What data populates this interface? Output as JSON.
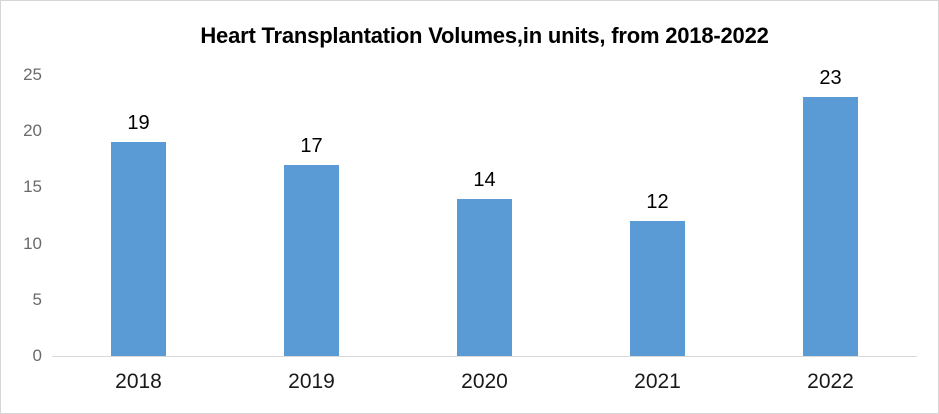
{
  "chart_data": {
    "type": "bar",
    "title": "Heart Transplantation Volumes,in units, from 2018-2022",
    "categories": [
      "2018",
      "2019",
      "2020",
      "2021",
      "2022"
    ],
    "values": [
      19,
      17,
      14,
      12,
      23
    ],
    "data_labels_shown": true,
    "xlabel": "",
    "ylabel": "",
    "ylim": [
      0,
      25
    ],
    "yticks": [
      0,
      5,
      10,
      15,
      20,
      25
    ],
    "grid": false,
    "legend": false
  },
  "colors": {
    "bar_fill": "#5b9bd5",
    "title_text": "#000000",
    "data_label_text": "#000000",
    "x_tick_text": "#1a1a1a",
    "y_tick_text": "#6a6a6a",
    "axis_line": "#d9d9d9",
    "background": "#ffffff",
    "frame_border": "#d6d6d6"
  }
}
